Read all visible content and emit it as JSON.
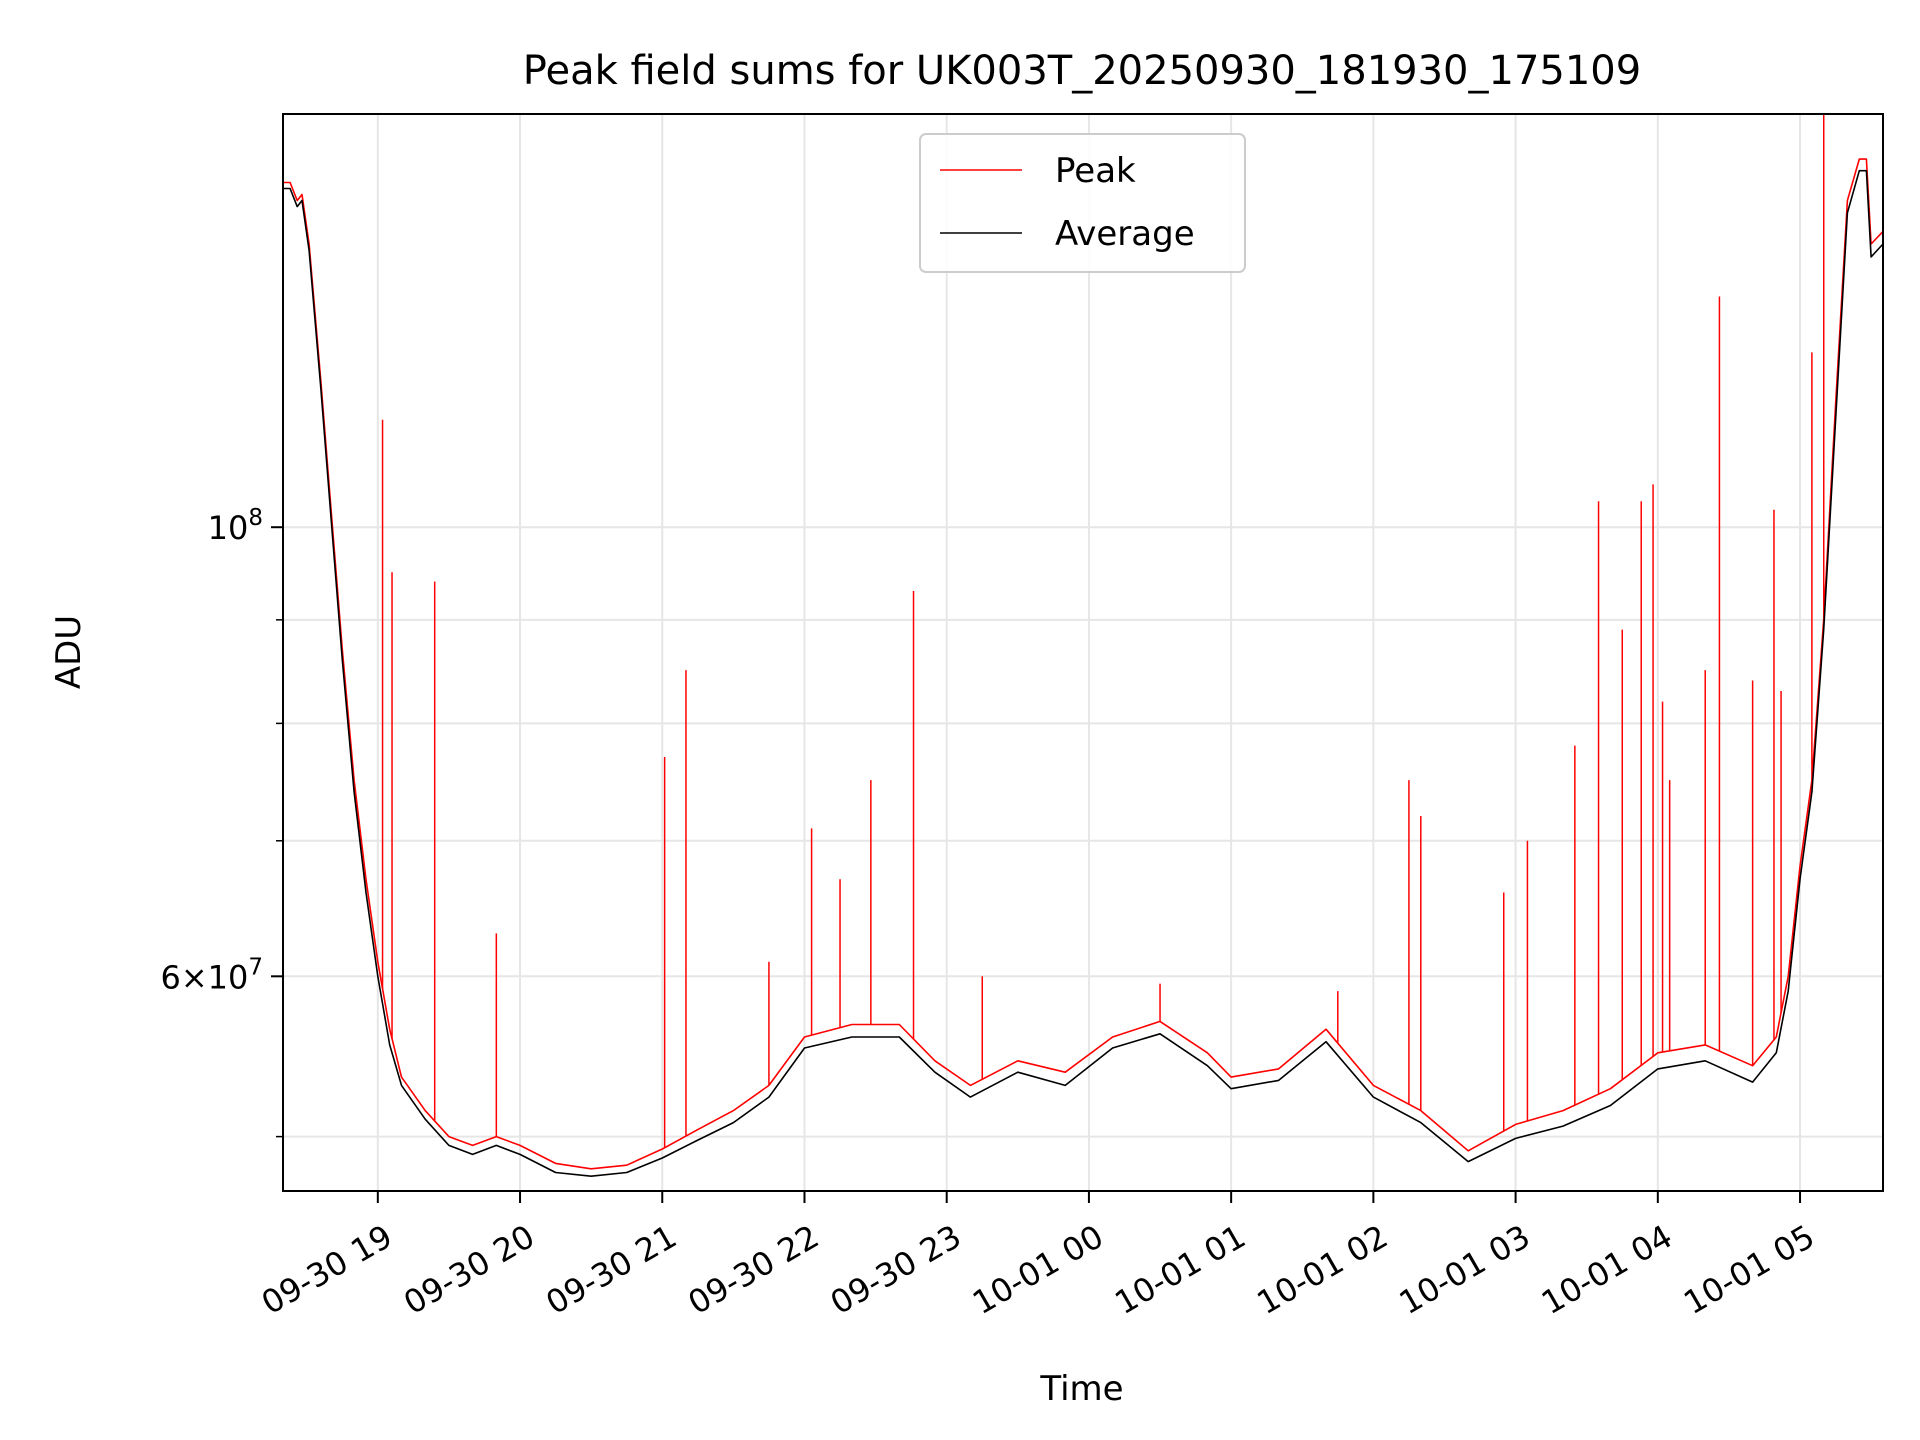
{
  "chart_data": {
    "type": "line",
    "title": "Peak field sums for UK003T_20250930_181930_175109",
    "xlabel": "Time",
    "ylabel": "ADU",
    "y_scale": "log",
    "grid": true,
    "legend_position": "upper center",
    "xlim": [
      "2025-09-30 18:20",
      "2025-10-01 05:35"
    ],
    "ylim": [
      47000000,
      160000000
    ],
    "x_tick_labels": [
      "09-30 19",
      "09-30 20",
      "09-30 21",
      "09-30 22",
      "09-30 23",
      "10-01 00",
      "10-01 01",
      "10-01 02",
      "10-01 03",
      "10-01 04",
      "10-01 05"
    ],
    "x_ticks": [
      "2025-09-30 19:00",
      "2025-09-30 20:00",
      "2025-09-30 21:00",
      "2025-09-30 22:00",
      "2025-09-30 23:00",
      "2025-10-01 00:00",
      "2025-10-01 01:00",
      "2025-10-01 02:00",
      "2025-10-01 03:00",
      "2025-10-01 04:00",
      "2025-10-01 05:00"
    ],
    "y_tick_labels": [
      {
        "value": 60000000,
        "mantissa": "6",
        "exponent": "7"
      },
      {
        "value": 100000000,
        "mantissa": "",
        "exponent": "8"
      }
    ],
    "y_minor_ticks": [
      50000000,
      70000000,
      80000000,
      90000000,
      200000000
    ],
    "colors": {
      "peak": "#ff0000",
      "average": "#000000",
      "grid": "#e6e6e6"
    },
    "series": [
      {
        "name": "Peak",
        "color": "#ff0000",
        "x": [
          "2025-09-30 18:20",
          "2025-09-30 18:23",
          "2025-09-30 18:26",
          "2025-09-30 18:28",
          "2025-09-30 18:31",
          "2025-09-30 18:36",
          "2025-09-30 18:40",
          "2025-09-30 18:45",
          "2025-09-30 18:50",
          "2025-09-30 18:55",
          "2025-09-30 19:00",
          "2025-09-30 19:05",
          "2025-09-30 19:10",
          "2025-09-30 19:20",
          "2025-09-30 19:30",
          "2025-09-30 19:40",
          "2025-09-30 19:50",
          "2025-09-30 20:00",
          "2025-09-30 20:15",
          "2025-09-30 20:30",
          "2025-09-30 20:45",
          "2025-09-30 21:00",
          "2025-09-30 21:15",
          "2025-09-30 21:30",
          "2025-09-30 21:45",
          "2025-09-30 22:00",
          "2025-09-30 22:20",
          "2025-09-30 22:40",
          "2025-09-30 22:55",
          "2025-09-30 23:10",
          "2025-09-30 23:30",
          "2025-09-30 23:50",
          "2025-10-01 00:10",
          "2025-10-01 00:30",
          "2025-10-01 00:50",
          "2025-10-01 01:00",
          "2025-10-01 01:20",
          "2025-10-01 01:40",
          "2025-10-01 02:00",
          "2025-10-01 02:20",
          "2025-10-01 02:40",
          "2025-10-01 03:00",
          "2025-10-01 03:20",
          "2025-10-01 03:40",
          "2025-10-01 04:00",
          "2025-10-01 04:20",
          "2025-10-01 04:40",
          "2025-10-01 04:50",
          "2025-10-01 04:55",
          "2025-10-01 05:00",
          "2025-10-01 05:05",
          "2025-10-01 05:10",
          "2025-10-01 05:15",
          "2025-10-01 05:20",
          "2025-10-01 05:25",
          "2025-10-01 05:28",
          "2025-10-01 05:30",
          "2025-10-01 05:35"
        ],
        "values": [
          148000000,
          148000000,
          145000000,
          146000000,
          138000000,
          118000000,
          103000000,
          87000000,
          75000000,
          67000000,
          61000000,
          56500000,
          53500000,
          51500000,
          50000000,
          49500000,
          50000000,
          49500000,
          48500000,
          48200000,
          48400000,
          49300000,
          50400000,
          51500000,
          53000000,
          56000000,
          56800000,
          56800000,
          54500000,
          53000000,
          54500000,
          53800000,
          56000000,
          57000000,
          55000000,
          53500000,
          54000000,
          56500000,
          53000000,
          51500000,
          49200000,
          50700000,
          51500000,
          52800000,
          55000000,
          55500000,
          54200000,
          56000000,
          60000000,
          68000000,
          75000000,
          90000000,
          115000000,
          145000000,
          152000000,
          152000000,
          138000000,
          140000000
        ]
      },
      {
        "name": "Average",
        "color": "#000000",
        "x": [
          "2025-09-30 18:20",
          "2025-09-30 18:23",
          "2025-09-30 18:26",
          "2025-09-30 18:28",
          "2025-09-30 18:31",
          "2025-09-30 18:36",
          "2025-09-30 18:40",
          "2025-09-30 18:45",
          "2025-09-30 18:50",
          "2025-09-30 18:55",
          "2025-09-30 19:00",
          "2025-09-30 19:05",
          "2025-09-30 19:10",
          "2025-09-30 19:20",
          "2025-09-30 19:30",
          "2025-09-30 19:40",
          "2025-09-30 19:50",
          "2025-09-30 20:00",
          "2025-09-30 20:15",
          "2025-09-30 20:30",
          "2025-09-30 20:45",
          "2025-09-30 21:00",
          "2025-09-30 21:15",
          "2025-09-30 21:30",
          "2025-09-30 21:45",
          "2025-09-30 22:00",
          "2025-09-30 22:20",
          "2025-09-30 22:40",
          "2025-09-30 22:55",
          "2025-09-30 23:10",
          "2025-09-30 23:30",
          "2025-09-30 23:50",
          "2025-10-01 00:10",
          "2025-10-01 00:30",
          "2025-10-01 00:50",
          "2025-10-01 01:00",
          "2025-10-01 01:20",
          "2025-10-01 01:40",
          "2025-10-01 02:00",
          "2025-10-01 02:20",
          "2025-10-01 02:40",
          "2025-10-01 03:00",
          "2025-10-01 03:20",
          "2025-10-01 03:40",
          "2025-10-01 04:00",
          "2025-10-01 04:20",
          "2025-10-01 04:40",
          "2025-10-01 04:50",
          "2025-10-01 04:55",
          "2025-10-01 05:00",
          "2025-10-01 05:05",
          "2025-10-01 05:10",
          "2025-10-01 05:15",
          "2025-10-01 05:20",
          "2025-10-01 05:25",
          "2025-10-01 05:28",
          "2025-10-01 05:30",
          "2025-10-01 05:35"
        ],
        "values": [
          147000000,
          147000000,
          144000000,
          145000000,
          137000000,
          117000000,
          102000000,
          86000000,
          74000000,
          66000000,
          60000000,
          55500000,
          53000000,
          51000000,
          49500000,
          49000000,
          49500000,
          49000000,
          48000000,
          47800000,
          48000000,
          48800000,
          49800000,
          50800000,
          52300000,
          55300000,
          56000000,
          56000000,
          53800000,
          52300000,
          53800000,
          53000000,
          55300000,
          56200000,
          54200000,
          52800000,
          53300000,
          55700000,
          52300000,
          50800000,
          48600000,
          49900000,
          50600000,
          51800000,
          54000000,
          54500000,
          53200000,
          55000000,
          59000000,
          67000000,
          74000000,
          89000000,
          113000000,
          143000000,
          150000000,
          150000000,
          136000000,
          138000000
        ]
      }
    ],
    "spikes": {
      "name": "Peak",
      "x": [
        "2025-09-30 19:02",
        "2025-09-30 19:06",
        "2025-09-30 19:24",
        "2025-09-30 19:50",
        "2025-09-30 21:01",
        "2025-09-30 21:10",
        "2025-09-30 21:45",
        "2025-09-30 22:03",
        "2025-09-30 22:15",
        "2025-09-30 22:28",
        "2025-09-30 22:46",
        "2025-09-30 23:15",
        "2025-10-01 00:30",
        "2025-10-01 01:45",
        "2025-10-01 02:15",
        "2025-10-01 02:20",
        "2025-10-01 02:55",
        "2025-10-01 03:05",
        "2025-10-01 03:25",
        "2025-10-01 03:35",
        "2025-10-01 03:45",
        "2025-10-01 03:53",
        "2025-10-01 03:58",
        "2025-10-01 04:02",
        "2025-10-01 04:05",
        "2025-10-01 04:20",
        "2025-10-01 04:26",
        "2025-10-01 04:40",
        "2025-10-01 04:49",
        "2025-10-01 04:52",
        "2025-10-01 05:05",
        "2025-10-01 05:10"
      ],
      "values": [
        113000000,
        95000000,
        94000000,
        63000000,
        77000000,
        85000000,
        61000000,
        71000000,
        67000000,
        75000000,
        93000000,
        60000000,
        59500000,
        59000000,
        75000000,
        72000000,
        66000000,
        70000000,
        78000000,
        103000000,
        89000000,
        103000000,
        105000000,
        82000000,
        75000000,
        85000000,
        130000000,
        84000000,
        102000000,
        83000000,
        122000000,
        160000000
      ]
    }
  }
}
